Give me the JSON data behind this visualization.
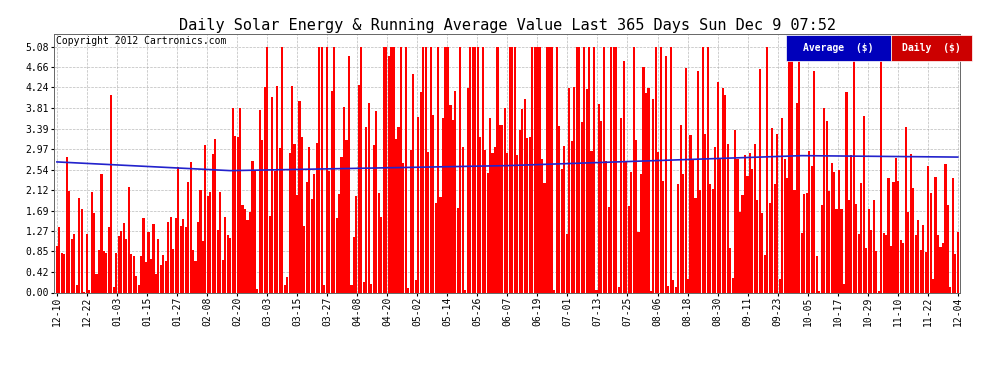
{
  "title": "Daily Solar Energy & Running Average Value Last 365 Days Sun Dec 9 07:52",
  "copyright": "Copyright 2012 Cartronics.com",
  "legend_avg": "Average  ($)",
  "legend_daily": "Daily  ($)",
  "yticks": [
    0.0,
    0.42,
    0.85,
    1.27,
    1.69,
    2.12,
    2.54,
    2.97,
    3.39,
    3.81,
    4.24,
    4.66,
    5.08
  ],
  "ylim": [
    0,
    5.35
  ],
  "bar_color": "#ff0000",
  "avg_line_color": "#2222cc",
  "bg_color": "#ffffff",
  "grid_color": "#aaaaaa",
  "title_fontsize": 11,
  "copyright_fontsize": 7,
  "tick_fontsize": 7,
  "legend_bg_avg": "#0000bb",
  "legend_bg_daily": "#cc0000",
  "legend_text_color": "#ffffff",
  "x_tick_labels": [
    "12-10",
    "12-22",
    "01-03",
    "01-15",
    "01-27",
    "02-08",
    "02-20",
    "03-03",
    "03-15",
    "03-27",
    "04-08",
    "04-20",
    "05-02",
    "05-14",
    "05-26",
    "06-07",
    "06-19",
    "07-01",
    "07-13",
    "07-25",
    "08-06",
    "08-18",
    "08-30",
    "09-11",
    "09-23",
    "10-05",
    "10-17",
    "10-29",
    "11-10",
    "11-22",
    "12-04"
  ]
}
